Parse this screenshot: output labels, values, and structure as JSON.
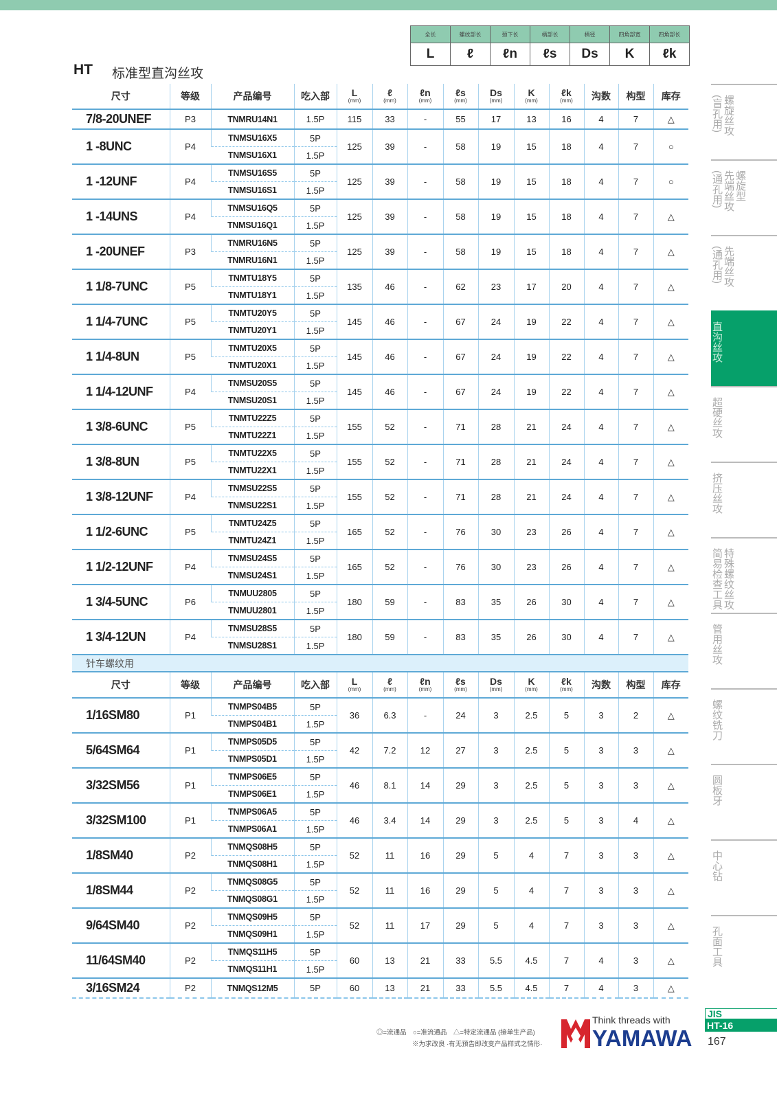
{
  "header": {
    "title": "HT",
    "subtitle": "标准型直沟丝攻"
  },
  "legend": {
    "labels": [
      "全长",
      "螺纹部长",
      "颈下长",
      "柄部长",
      "柄径",
      "四角部宽",
      "四角部长"
    ],
    "symbols": [
      "L",
      "ℓ",
      "ℓn",
      "ℓs",
      "Ds",
      "K",
      "ℓk"
    ]
  },
  "columns": {
    "size": "尺寸",
    "grade": "等级",
    "code": "产品编号",
    "entry": "吃入部",
    "L": "L",
    "l": "ℓ",
    "ln": "ℓn",
    "ls": "ℓs",
    "Ds": "Ds",
    "K": "K",
    "lk": "ℓk",
    "unit": "(mm)",
    "flutes": "沟数",
    "type": "构型",
    "stock": "库存"
  },
  "table1": [
    {
      "size": "7/8-20UNEF",
      "grade": "P3",
      "codes": [
        "TNMRU14N1"
      ],
      "entries": [
        "1.5P"
      ],
      "L": "115",
      "l": "33",
      "ln": "-",
      "ls": "55",
      "Ds": "17",
      "K": "13",
      "lk": "16",
      "flutes": "4",
      "type": "7",
      "stock": "△"
    },
    {
      "size": "1 -8UNC",
      "grade": "P4",
      "codes": [
        "TNMSU16X5",
        "TNMSU16X1"
      ],
      "entries": [
        "5P",
        "1.5P"
      ],
      "L": "125",
      "l": "39",
      "ln": "-",
      "ls": "58",
      "Ds": "19",
      "K": "15",
      "lk": "18",
      "flutes": "4",
      "type": "7",
      "stock": "○"
    },
    {
      "size": "1 -12UNF",
      "grade": "P4",
      "codes": [
        "TNMSU16S5",
        "TNMSU16S1"
      ],
      "entries": [
        "5P",
        "1.5P"
      ],
      "L": "125",
      "l": "39",
      "ln": "-",
      "ls": "58",
      "Ds": "19",
      "K": "15",
      "lk": "18",
      "flutes": "4",
      "type": "7",
      "stock": "○"
    },
    {
      "size": "1 -14UNS",
      "grade": "P4",
      "codes": [
        "TNMSU16Q5",
        "TNMSU16Q1"
      ],
      "entries": [
        "5P",
        "1.5P"
      ],
      "L": "125",
      "l": "39",
      "ln": "-",
      "ls": "58",
      "Ds": "19",
      "K": "15",
      "lk": "18",
      "flutes": "4",
      "type": "7",
      "stock": "△"
    },
    {
      "size": "1 -20UNEF",
      "grade": "P3",
      "codes": [
        "TNMRU16N5",
        "TNMRU16N1"
      ],
      "entries": [
        "5P",
        "1.5P"
      ],
      "L": "125",
      "l": "39",
      "ln": "-",
      "ls": "58",
      "Ds": "19",
      "K": "15",
      "lk": "18",
      "flutes": "4",
      "type": "7",
      "stock": "△"
    },
    {
      "size": "1 1/8-7UNC",
      "grade": "P5",
      "codes": [
        "TNMTU18Y5",
        "TNMTU18Y1"
      ],
      "entries": [
        "5P",
        "1.5P"
      ],
      "L": "135",
      "l": "46",
      "ln": "-",
      "ls": "62",
      "Ds": "23",
      "K": "17",
      "lk": "20",
      "flutes": "4",
      "type": "7",
      "stock": "△"
    },
    {
      "size": "1 1/4-7UNC",
      "grade": "P5",
      "codes": [
        "TNMTU20Y5",
        "TNMTU20Y1"
      ],
      "entries": [
        "5P",
        "1.5P"
      ],
      "L": "145",
      "l": "46",
      "ln": "-",
      "ls": "67",
      "Ds": "24",
      "K": "19",
      "lk": "22",
      "flutes": "4",
      "type": "7",
      "stock": "△"
    },
    {
      "size": "1 1/4-8UN",
      "grade": "P5",
      "codes": [
        "TNMTU20X5",
        "TNMTU20X1"
      ],
      "entries": [
        "5P",
        "1.5P"
      ],
      "L": "145",
      "l": "46",
      "ln": "-",
      "ls": "67",
      "Ds": "24",
      "K": "19",
      "lk": "22",
      "flutes": "4",
      "type": "7",
      "stock": "△"
    },
    {
      "size": "1 1/4-12UNF",
      "grade": "P4",
      "codes": [
        "TNMSU20S5",
        "TNMSU20S1"
      ],
      "entries": [
        "5P",
        "1.5P"
      ],
      "L": "145",
      "l": "46",
      "ln": "-",
      "ls": "67",
      "Ds": "24",
      "K": "19",
      "lk": "22",
      "flutes": "4",
      "type": "7",
      "stock": "△"
    },
    {
      "size": "1 3/8-6UNC",
      "grade": "P5",
      "codes": [
        "TNMTU22Z5",
        "TNMTU22Z1"
      ],
      "entries": [
        "5P",
        "1.5P"
      ],
      "L": "155",
      "l": "52",
      "ln": "-",
      "ls": "71",
      "Ds": "28",
      "K": "21",
      "lk": "24",
      "flutes": "4",
      "type": "7",
      "stock": "△"
    },
    {
      "size": "1 3/8-8UN",
      "grade": "P5",
      "codes": [
        "TNMTU22X5",
        "TNMTU22X1"
      ],
      "entries": [
        "5P",
        "1.5P"
      ],
      "L": "155",
      "l": "52",
      "ln": "-",
      "ls": "71",
      "Ds": "28",
      "K": "21",
      "lk": "24",
      "flutes": "4",
      "type": "7",
      "stock": "△"
    },
    {
      "size": "1 3/8-12UNF",
      "grade": "P4",
      "codes": [
        "TNMSU22S5",
        "TNMSU22S1"
      ],
      "entries": [
        "5P",
        "1.5P"
      ],
      "L": "155",
      "l": "52",
      "ln": "-",
      "ls": "71",
      "Ds": "28",
      "K": "21",
      "lk": "24",
      "flutes": "4",
      "type": "7",
      "stock": "△"
    },
    {
      "size": "1 1/2-6UNC",
      "grade": "P5",
      "codes": [
        "TNMTU24Z5",
        "TNMTU24Z1"
      ],
      "entries": [
        "5P",
        "1.5P"
      ],
      "L": "165",
      "l": "52",
      "ln": "-",
      "ls": "76",
      "Ds": "30",
      "K": "23",
      "lk": "26",
      "flutes": "4",
      "type": "7",
      "stock": "△"
    },
    {
      "size": "1 1/2-12UNF",
      "grade": "P4",
      "codes": [
        "TNMSU24S5",
        "TNMSU24S1"
      ],
      "entries": [
        "5P",
        "1.5P"
      ],
      "L": "165",
      "l": "52",
      "ln": "-",
      "ls": "76",
      "Ds": "30",
      "K": "23",
      "lk": "26",
      "flutes": "4",
      "type": "7",
      "stock": "△"
    },
    {
      "size": "1 3/4-5UNC",
      "grade": "P6",
      "codes": [
        "TNMUU2805",
        "TNMUU2801"
      ],
      "entries": [
        "5P",
        "1.5P"
      ],
      "L": "180",
      "l": "59",
      "ln": "-",
      "ls": "83",
      "Ds": "35",
      "K": "26",
      "lk": "30",
      "flutes": "4",
      "type": "7",
      "stock": "△"
    },
    {
      "size": "1 3/4-12UN",
      "grade": "P4",
      "codes": [
        "TNMSU28S5",
        "TNMSU28S1"
      ],
      "entries": [
        "5P",
        "1.5P"
      ],
      "L": "180",
      "l": "59",
      "ln": "-",
      "ls": "83",
      "Ds": "35",
      "K": "26",
      "lk": "30",
      "flutes": "4",
      "type": "7",
      "stock": "△"
    }
  ],
  "section2_title": "针车螺纹用",
  "table2": [
    {
      "size": "1/16SM80",
      "grade": "P1",
      "codes": [
        "TNMPS04B5",
        "TNMPS04B1"
      ],
      "entries": [
        "5P",
        "1.5P"
      ],
      "L": "36",
      "l": "6.3",
      "ln": "-",
      "ls": "24",
      "Ds": "3",
      "K": "2.5",
      "lk": "5",
      "flutes": "3",
      "type": "2",
      "stock": "△"
    },
    {
      "size": "5/64SM64",
      "grade": "P1",
      "codes": [
        "TNMPS05D5",
        "TNMPS05D1"
      ],
      "entries": [
        "5P",
        "1.5P"
      ],
      "L": "42",
      "l": "7.2",
      "ln": "12",
      "ls": "27",
      "Ds": "3",
      "K": "2.5",
      "lk": "5",
      "flutes": "3",
      "type": "3",
      "stock": "△"
    },
    {
      "size": "3/32SM56",
      "grade": "P1",
      "codes": [
        "TNMPS06E5",
        "TNMPS06E1"
      ],
      "entries": [
        "5P",
        "1.5P"
      ],
      "L": "46",
      "l": "8.1",
      "ln": "14",
      "ls": "29",
      "Ds": "3",
      "K": "2.5",
      "lk": "5",
      "flutes": "3",
      "type": "3",
      "stock": "△"
    },
    {
      "size": "3/32SM100",
      "grade": "P1",
      "codes": [
        "TNMPS06A5",
        "TNMPS06A1"
      ],
      "entries": [
        "5P",
        "1.5P"
      ],
      "L": "46",
      "l": "3.4",
      "ln": "14",
      "ls": "29",
      "Ds": "3",
      "K": "2.5",
      "lk": "5",
      "flutes": "3",
      "type": "4",
      "stock": "△"
    },
    {
      "size": "1/8SM40",
      "grade": "P2",
      "codes": [
        "TNMQS08H5",
        "TNMQS08H1"
      ],
      "entries": [
        "5P",
        "1.5P"
      ],
      "L": "52",
      "l": "11",
      "ln": "16",
      "ls": "29",
      "Ds": "5",
      "K": "4",
      "lk": "7",
      "flutes": "3",
      "type": "3",
      "stock": "△"
    },
    {
      "size": "1/8SM44",
      "grade": "P2",
      "codes": [
        "TNMQS08G5",
        "TNMQS08G1"
      ],
      "entries": [
        "5P",
        "1.5P"
      ],
      "L": "52",
      "l": "11",
      "ln": "16",
      "ls": "29",
      "Ds": "5",
      "K": "4",
      "lk": "7",
      "flutes": "3",
      "type": "3",
      "stock": "△"
    },
    {
      "size": "9/64SM40",
      "grade": "P2",
      "codes": [
        "TNMQS09H5",
        "TNMQS09H1"
      ],
      "entries": [
        "5P",
        "1.5P"
      ],
      "L": "52",
      "l": "11",
      "ln": "17",
      "ls": "29",
      "Ds": "5",
      "K": "4",
      "lk": "7",
      "flutes": "3",
      "type": "3",
      "stock": "△"
    },
    {
      "size": "11/64SM40",
      "grade": "P2",
      "codes": [
        "TNMQS11H5",
        "TNMQS11H1"
      ],
      "entries": [
        "5P",
        "1.5P"
      ],
      "L": "60",
      "l": "13",
      "ln": "21",
      "ls": "33",
      "Ds": "5.5",
      "K": "4.5",
      "lk": "7",
      "flutes": "4",
      "type": "3",
      "stock": "△"
    },
    {
      "size": "3/16SM24",
      "grade": "P2",
      "codes": [
        "TNMQS12M5"
      ],
      "entries": [
        "5P"
      ],
      "L": "60",
      "l": "13",
      "ln": "21",
      "ls": "33",
      "Ds": "5.5",
      "K": "4.5",
      "lk": "7",
      "flutes": "4",
      "type": "3",
      "stock": "△"
    }
  ],
  "side_tabs": [
    {
      "cols": [
        "螺旋丝攻",
        "(盲孔用)"
      ],
      "active": false
    },
    {
      "cols": [
        "螺旋型",
        "先端丝攻",
        "(通孔用)"
      ],
      "active": false
    },
    {
      "cols": [
        "先端丝攻",
        "(通孔用)"
      ],
      "active": false
    },
    {
      "cols": [
        "直沟丝攻"
      ],
      "active": true
    },
    {
      "cols": [
        "超硬丝攻"
      ],
      "active": false
    },
    {
      "cols": [
        "挤压丝攻"
      ],
      "active": false
    },
    {
      "cols": [
        "特殊螺纹丝攻",
        "简易检查工具"
      ],
      "active": false
    },
    {
      "cols": [
        "管用丝攻"
      ],
      "active": false
    },
    {
      "cols": [
        "螺纹铣刀"
      ],
      "active": false
    },
    {
      "cols": [
        "圆板牙"
      ],
      "active": false
    },
    {
      "cols": [
        "中心钻"
      ],
      "active": false
    },
    {
      "cols": [
        "孔面工具"
      ],
      "active": false
    }
  ],
  "footer": {
    "stock_legend": "◎=流通品　○=准流通品　△=特定流通品 (接单生产品)",
    "notice": "※为求改良 ·有无预告即改变产品样式之情形·",
    "tagline": "Think threads with",
    "brand": "YAMAWA",
    "standard": "JIS",
    "section_code": "HT-16",
    "page_number": "167"
  },
  "colors": {
    "accent_green": "#06a06a",
    "header_green": "#8fcbb0",
    "line_blue": "#5ea9d6",
    "brand_blue": "#1c3d8f",
    "brand_red": "#d7262e"
  }
}
